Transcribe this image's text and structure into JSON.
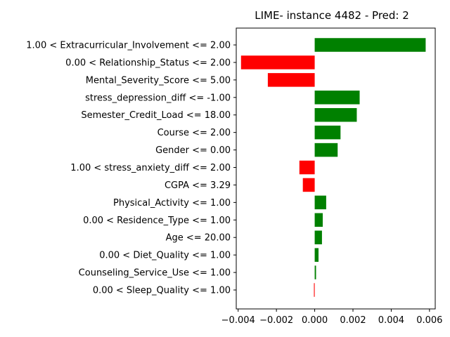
{
  "chart_data": {
    "type": "bar",
    "orientation": "horizontal",
    "title": "LIME- instance 4482 - Pred: 2",
    "xlabel": "",
    "ylabel": "",
    "xlim": [
      -0.0041,
      0.0063
    ],
    "xticks": [
      "−0.004",
      "−0.002",
      "0.000",
      "0.002",
      "0.004",
      "0.006"
    ],
    "xtick_values": [
      -0.004,
      -0.002,
      0.0,
      0.002,
      0.004,
      0.006
    ],
    "grid": false,
    "positive_color": "#008000",
    "negative_color": "#ff0000",
    "categories": [
      "1.00 < Extracurricular_Involvement <= 2.00",
      "0.00 < Relationship_Status <= 2.00",
      "Mental_Severity_Score <= 5.00",
      "stress_depression_diff <= -1.00",
      "Semester_Credit_Load <= 18.00",
      "Course <= 2.00",
      "Gender <= 0.00",
      "1.00 < stress_anxiety_diff <= 2.00",
      "CGPA <= 3.29",
      "Physical_Activity <= 1.00",
      "0.00 < Residence_Type <= 1.00",
      "Age <= 20.00",
      "0.00 < Diet_Quality <= 1.00",
      "Counseling_Service_Use <= 1.00",
      "0.00 < Sleep_Quality <= 1.00"
    ],
    "values": [
      0.0058,
      -0.00385,
      -0.00245,
      0.00235,
      0.0022,
      0.00135,
      0.0012,
      -0.0008,
      -0.00062,
      0.0006,
      0.00042,
      0.00038,
      0.0002,
      7e-05,
      -4e-05
    ]
  }
}
